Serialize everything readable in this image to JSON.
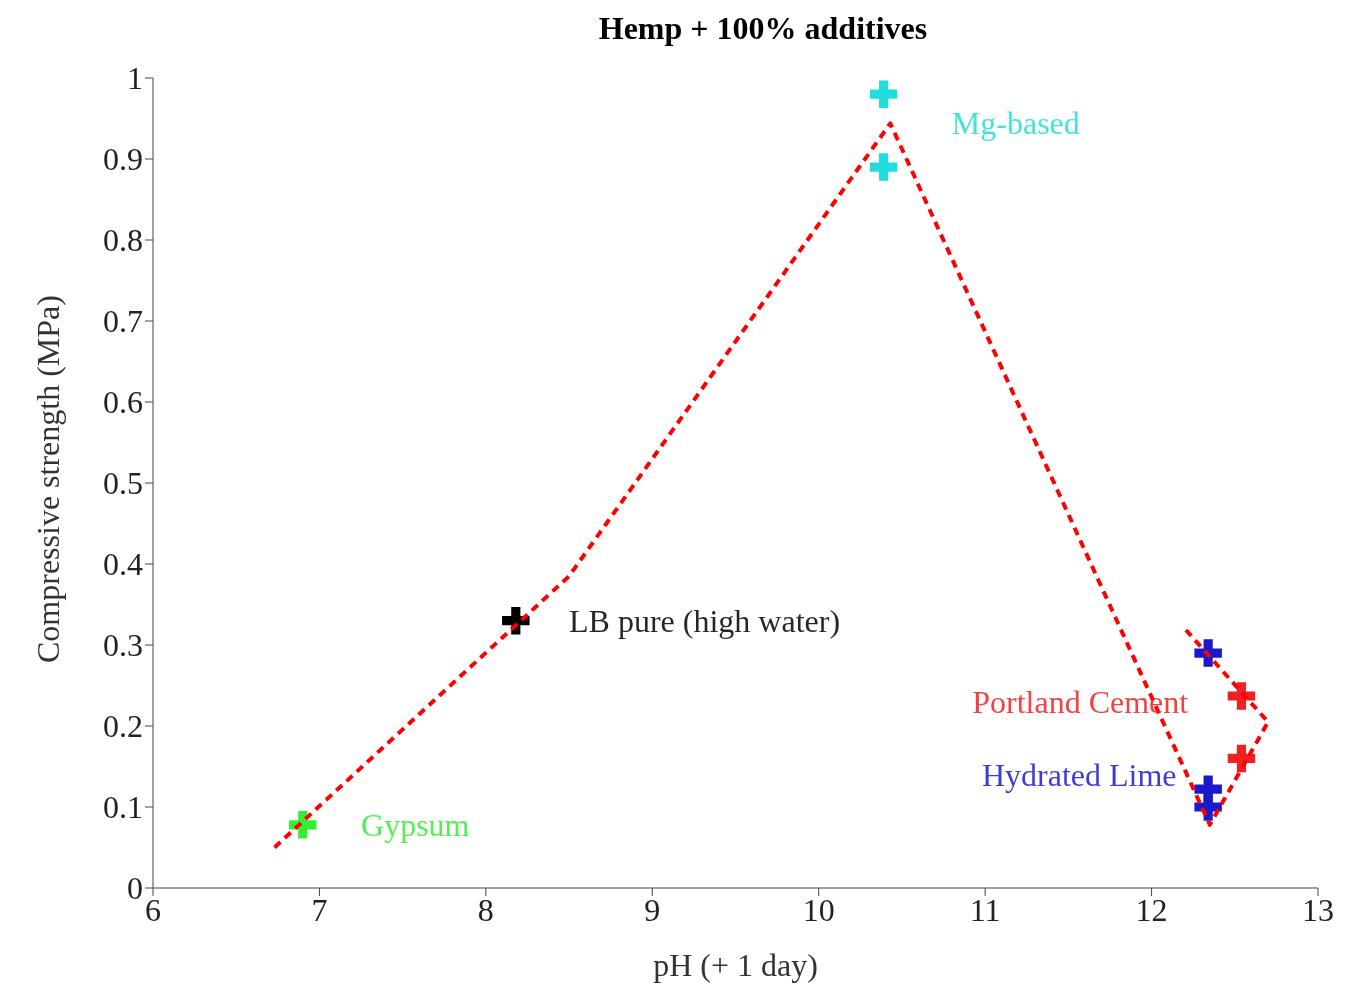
{
  "chart_data": {
    "type": "scatter",
    "title": "Hemp + 100% additives",
    "xlabel": "pH (+ 1 day)",
    "ylabel": "Compressive strength (MPa)",
    "xlim": [
      6,
      13
    ],
    "xticks": [
      6,
      7,
      8,
      9,
      10,
      11,
      12,
      13
    ],
    "ylim": [
      0,
      1
    ],
    "yticks": [
      0,
      0.1,
      0.2,
      0.3,
      0.4,
      0.5,
      0.6,
      0.7,
      0.8,
      0.9,
      1
    ],
    "marker": "cross",
    "grid": false,
    "legend": false,
    "series": [
      {
        "color": "#33ee33",
        "x": [
          6.9
        ],
        "values": [
          0.078
        ]
      },
      {
        "color": "#000000",
        "x": [
          8.18
        ],
        "values": [
          0.33
        ]
      },
      {
        "color": "#22dddd",
        "x": [
          10.39,
          10.39
        ],
        "values": [
          0.98,
          0.89
        ]
      },
      {
        "color": "#ee2222",
        "x": [
          12.54,
          12.54
        ],
        "values": [
          0.237,
          0.16
        ]
      },
      {
        "color": "#1a1acc",
        "x": [
          12.34,
          12.34,
          12.34
        ],
        "values": [
          0.29,
          0.122,
          0.1
        ]
      },
      {
        "type": "line",
        "color": "#ff0000",
        "line_style": "dashed",
        "marker": "none",
        "x": [
          6.73,
          8.5,
          10.43,
          12.35,
          12.7,
          12.2
        ],
        "values": [
          0.05,
          0.385,
          0.944,
          0.078,
          0.205,
          0.32
        ]
      }
    ],
    "annotations": [
      "Gypsum",
      "LB pure (high water)",
      "Mg-based",
      "Portland Cement",
      "Hydrated Lime"
    ]
  }
}
